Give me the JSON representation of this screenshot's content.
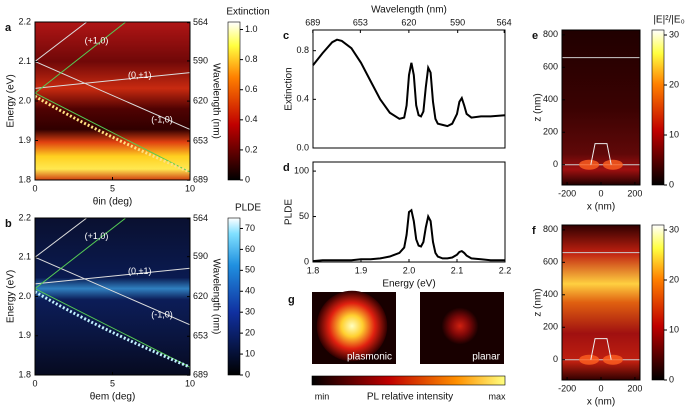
{
  "chart_data": [
    {
      "panel": "a",
      "type": "heatmap",
      "xlabel": "θin (deg)",
      "ylabel": "Energy (eV)",
      "xlim": [
        0,
        10
      ],
      "xticks": [
        0,
        5,
        10
      ],
      "ylim": [
        1.8,
        2.2
      ],
      "yticks": [
        1.8,
        1.9,
        {
          "value": 2,
          "label": "2.0"
        },
        2.1,
        2.2
      ],
      "y2label": "Wavelength (nm)",
      "y2ticks": [
        564,
        590,
        620,
        653,
        689
      ],
      "colorbar_label": "Extinction",
      "clim": [
        0,
        1.05
      ],
      "cticks": [
        0,
        0.2,
        0.4,
        0.6,
        0.8,
        {
          "value": 1,
          "label": "1.0"
        }
      ],
      "annotations": [
        "(+1,0)",
        "(0,±1)",
        "(-1,0)"
      ],
      "colormap": "hot"
    },
    {
      "panel": "b",
      "type": "heatmap",
      "xlabel": "θem (deg)",
      "ylabel": "Energy (eV)",
      "xlim": [
        0,
        10
      ],
      "xticks": [
        0,
        5,
        10
      ],
      "ylim": [
        1.8,
        2.2
      ],
      "yticks": [
        1.8,
        1.9,
        {
          "value": 2,
          "label": "2.0"
        },
        2.1,
        2.2
      ],
      "y2label": "Wavelength (nm)",
      "y2ticks": [
        564,
        590,
        620,
        653,
        689
      ],
      "colorbar_label": "PLDE",
      "clim": [
        0,
        75
      ],
      "cticks": [
        0,
        10,
        20,
        30,
        40,
        50,
        60,
        70
      ],
      "annotations": [
        "(+1,0)",
        "(0,±1)",
        "(-1,0)"
      ],
      "colormap": "blue"
    },
    {
      "panel": "c",
      "type": "line",
      "ylabel": "Extinction",
      "color": "#000000",
      "xlim": [
        1.8,
        2.2
      ],
      "ylim": [
        0,
        0.97
      ],
      "yticks": [
        {
          "value": 0,
          "label": "0.0"
        },
        0.4,
        0.8
      ],
      "x2label": "Wavelength (nm)",
      "x2ticks": [
        689,
        653,
        620,
        590,
        564
      ],
      "x": [
        1.8,
        1.82,
        1.84,
        1.85,
        1.86,
        1.88,
        1.9,
        1.92,
        1.94,
        1.96,
        1.98,
        1.99,
        1.995,
        2.0,
        2.005,
        2.01,
        2.015,
        2.02,
        2.025,
        2.03,
        2.035,
        2.04,
        2.045,
        2.05,
        2.055,
        2.06,
        2.07,
        2.08,
        2.09,
        2.1,
        2.105,
        2.11,
        2.115,
        2.12,
        2.13,
        2.15,
        2.17,
        2.2
      ],
      "values": [
        0.68,
        0.78,
        0.87,
        0.89,
        0.88,
        0.82,
        0.7,
        0.55,
        0.4,
        0.29,
        0.24,
        0.25,
        0.35,
        0.6,
        0.7,
        0.6,
        0.35,
        0.27,
        0.26,
        0.3,
        0.5,
        0.66,
        0.62,
        0.38,
        0.24,
        0.2,
        0.19,
        0.18,
        0.2,
        0.28,
        0.38,
        0.41,
        0.35,
        0.28,
        0.25,
        0.26,
        0.26,
        0.27
      ]
    },
    {
      "panel": "d",
      "type": "line",
      "ylabel": "PLDE",
      "xlabel": "Energy (eV)",
      "color": "#000000",
      "xlim": [
        1.8,
        2.2
      ],
      "ylim": [
        0,
        110
      ],
      "yticks": [
        0,
        50,
        100
      ],
      "xticks": [
        1.8,
        1.9,
        {
          "value": 2,
          "label": "2.0"
        },
        2.1,
        2.2
      ],
      "x": [
        1.8,
        1.82,
        1.84,
        1.85,
        1.86,
        1.88,
        1.9,
        1.92,
        1.94,
        1.96,
        1.98,
        1.99,
        1.995,
        2.0,
        2.005,
        2.01,
        2.015,
        2.02,
        2.025,
        2.03,
        2.035,
        2.04,
        2.045,
        2.05,
        2.055,
        2.06,
        2.07,
        2.08,
        2.09,
        2.1,
        2.105,
        2.11,
        2.115,
        2.12,
        2.13,
        2.15,
        2.17,
        2.2
      ],
      "values": [
        1,
        2,
        2,
        2,
        2,
        2,
        3,
        3,
        4,
        6,
        10,
        16,
        30,
        55,
        57,
        45,
        25,
        18,
        17,
        22,
        38,
        50,
        45,
        22,
        10,
        6,
        4,
        4,
        5,
        8,
        11,
        12,
        10,
        7,
        4,
        3,
        2,
        2
      ]
    },
    {
      "panel": "e",
      "type": "heatmap",
      "xlabel": "x (nm)",
      "ylabel": "z (nm)",
      "xlim": [
        -230,
        230
      ],
      "xticks": [
        -200,
        0,
        200
      ],
      "ylim": [
        -125,
        830
      ],
      "yticks": [
        0,
        200,
        400,
        600,
        800
      ],
      "colorbar_label": "|E|²/|E₀|²",
      "clim": [
        0,
        31
      ],
      "cticks": [
        0,
        10,
        20,
        30
      ],
      "colormap": "field-e"
    },
    {
      "panel": "f",
      "type": "heatmap",
      "xlabel": "x (nm)",
      "ylabel": "z (nm)",
      "xlim": [
        -230,
        230
      ],
      "xticks": [
        -200,
        0,
        200
      ],
      "ylim": [
        -125,
        830
      ],
      "yticks": [
        0,
        200,
        400,
        600,
        800
      ],
      "clim": [
        0,
        31
      ],
      "cticks": [
        0,
        10,
        20,
        30
      ],
      "colormap": "field-f"
    },
    {
      "panel": "g",
      "type": "image",
      "labels": [
        "plasmonic",
        "planar"
      ],
      "colorbar_label": "PL relative intensity",
      "colorbar_ticks": [
        "min",
        "max"
      ]
    }
  ]
}
